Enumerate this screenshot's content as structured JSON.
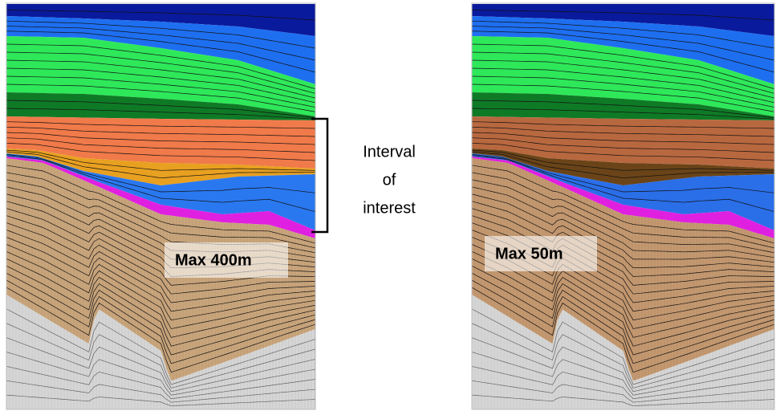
{
  "annotation": {
    "lines": [
      "Interval",
      "of",
      "interest"
    ]
  },
  "panels": [
    {
      "label": "Max 400m"
    },
    {
      "label": "Max 50m"
    }
  ]
}
